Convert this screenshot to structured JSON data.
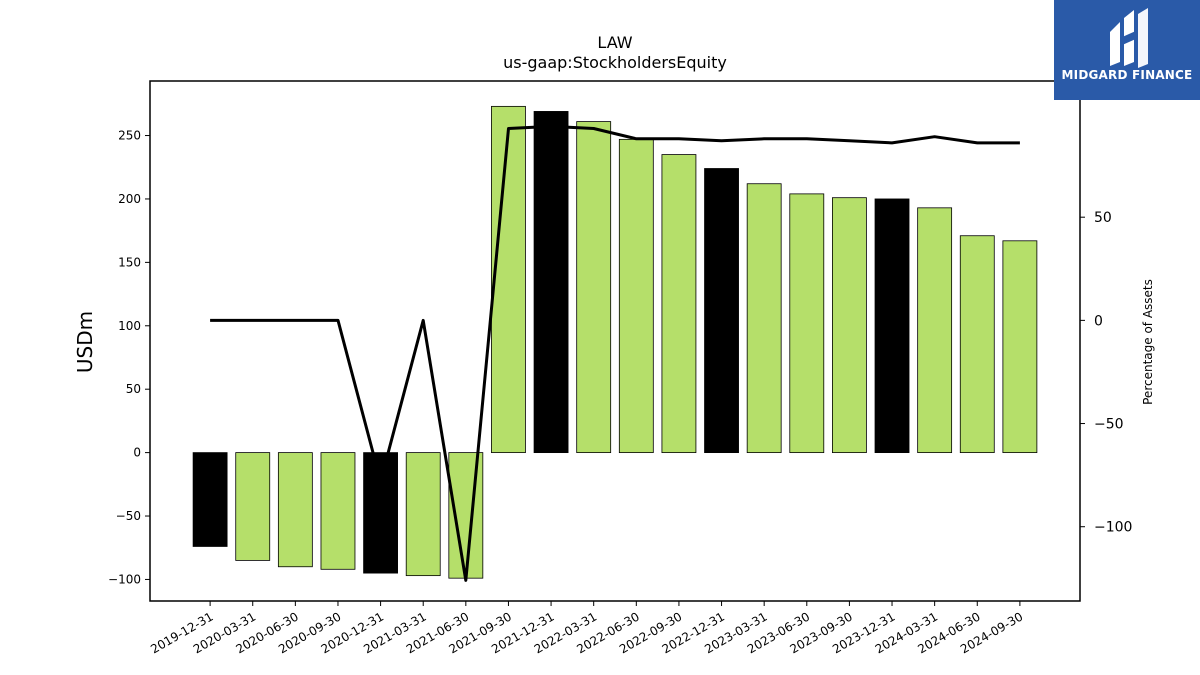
{
  "chart_data": {
    "type": "bar",
    "title": "LAW",
    "subtitle": "us-gaap:StockholdersEquity",
    "ylabel": "USDm",
    "y2label": "Percentage of Assets",
    "ylim": [
      -117,
      293
    ],
    "y2lim": [
      -136,
      116
    ],
    "yticks": [
      -100,
      -50,
      0,
      50,
      100,
      150,
      200,
      250
    ],
    "y2ticks": [
      -100,
      -50,
      0,
      50
    ],
    "categories": [
      "2019-12-31",
      "2020-03-31",
      "2020-06-30",
      "2020-09-30",
      "2020-12-31",
      "2021-03-31",
      "2021-06-30",
      "2021-09-30",
      "2021-12-31",
      "2022-03-31",
      "2022-06-30",
      "2022-09-30",
      "2022-12-31",
      "2023-03-31",
      "2023-06-30",
      "2023-09-30",
      "2023-12-31",
      "2024-03-31",
      "2024-06-30",
      "2024-09-30"
    ],
    "series": [
      {
        "type": "bar",
        "values": [
          -74,
          -85,
          -90,
          -92,
          -95,
          -97,
          -99,
          273,
          269,
          261,
          247,
          235,
          224,
          212,
          204,
          201,
          200,
          193,
          171,
          167
        ],
        "highlight_color": "#000000",
        "color": "#b5df6a",
        "highlight": [
          true,
          false,
          false,
          false,
          true,
          false,
          false,
          false,
          true,
          false,
          false,
          false,
          true,
          false,
          false,
          false,
          true,
          false,
          false,
          false
        ]
      },
      {
        "type": "line",
        "axis": "right",
        "color": "#000000",
        "values": [
          0,
          0,
          0,
          0,
          -78,
          0,
          -126,
          93,
          94,
          93,
          88,
          88,
          87,
          88,
          88,
          87,
          86,
          89,
          86,
          86
        ]
      }
    ]
  },
  "logo": {
    "text": "MIDGARD FINANCE",
    "background": "#2a5aa8"
  }
}
